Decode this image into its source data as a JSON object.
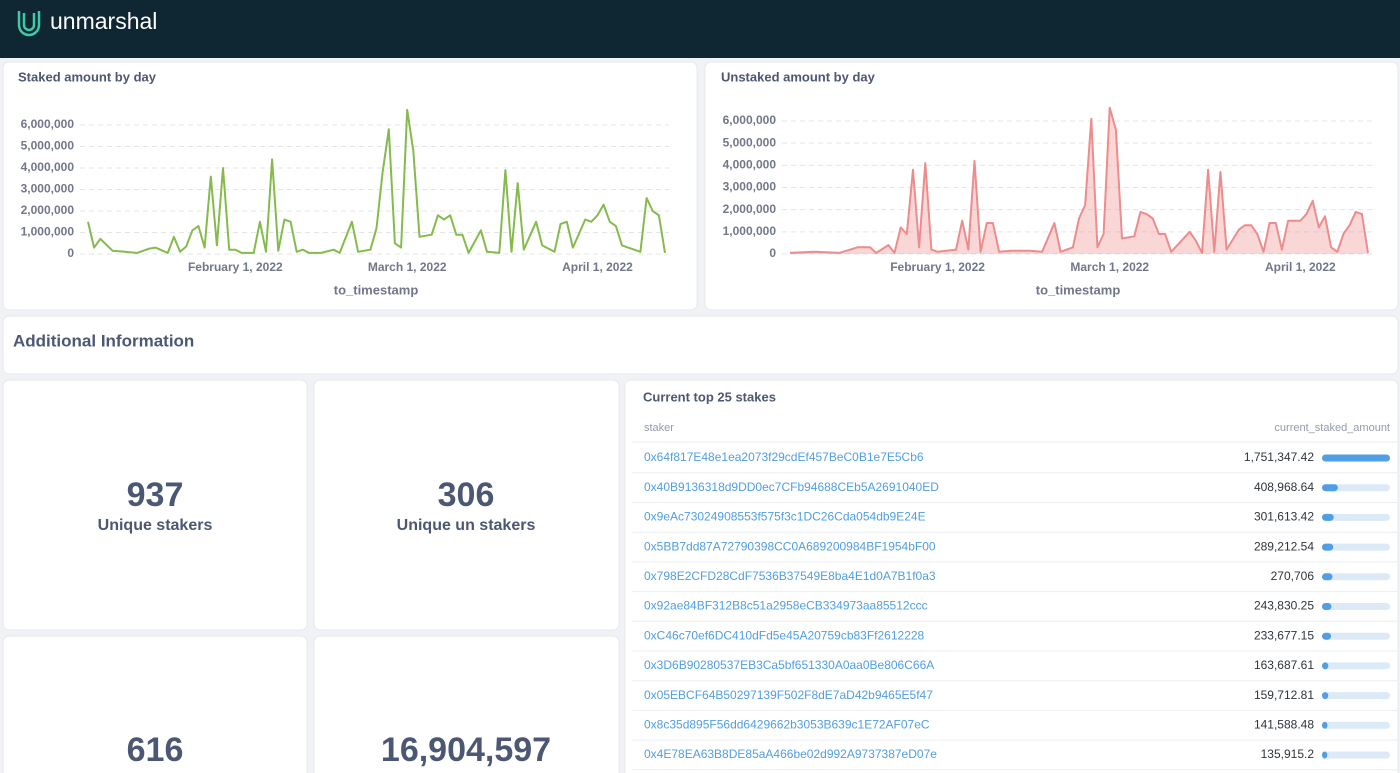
{
  "header": {
    "brand": "unmarshal"
  },
  "chart_data": [
    {
      "type": "line",
      "title": "Staked amount by day",
      "x_label": "to_timestamp",
      "color": "#84bb4c",
      "grid": true,
      "x": [
        "2022-01-08",
        "2022-01-09",
        "2022-01-10",
        "2022-01-12",
        "2022-01-14",
        "2022-01-16",
        "2022-01-18",
        "2022-01-19",
        "2022-01-21",
        "2022-01-22",
        "2022-01-23",
        "2022-01-24",
        "2022-01-25",
        "2022-01-26",
        "2022-01-27",
        "2022-01-28",
        "2022-01-29",
        "2022-01-30",
        "2022-01-31",
        "2022-02-01",
        "2022-02-02",
        "2022-02-04",
        "2022-02-05",
        "2022-02-06",
        "2022-02-07",
        "2022-02-08",
        "2022-02-09",
        "2022-02-10",
        "2022-02-11",
        "2022-02-12",
        "2022-02-13",
        "2022-02-15",
        "2022-02-17",
        "2022-02-18",
        "2022-02-20",
        "2022-02-21",
        "2022-02-23",
        "2022-02-24",
        "2022-02-25",
        "2022-02-26",
        "2022-02-27",
        "2022-02-28",
        "2022-03-01",
        "2022-03-02",
        "2022-03-03",
        "2022-03-05",
        "2022-03-06",
        "2022-03-07",
        "2022-03-08",
        "2022-03-09",
        "2022-03-10",
        "2022-03-11",
        "2022-03-13",
        "2022-03-14",
        "2022-03-16",
        "2022-03-17",
        "2022-03-18",
        "2022-03-19",
        "2022-03-20",
        "2022-03-22",
        "2022-03-23",
        "2022-03-25",
        "2022-03-26",
        "2022-03-27",
        "2022-03-28",
        "2022-03-30",
        "2022-03-31",
        "2022-04-01",
        "2022-04-02",
        "2022-04-03",
        "2022-04-04",
        "2022-04-05",
        "2022-04-07",
        "2022-04-08",
        "2022-04-09",
        "2022-04-10",
        "2022-04-11",
        "2022-04-12"
      ],
      "values": [
        1500000,
        300000,
        700000,
        150000,
        100000,
        50000,
        250000,
        300000,
        50000,
        800000,
        100000,
        350000,
        1100000,
        1300000,
        300000,
        3600000,
        400000,
        4000000,
        200000,
        200000,
        50000,
        50000,
        1500000,
        100000,
        4400000,
        150000,
        1600000,
        1500000,
        100000,
        200000,
        50000,
        50000,
        200000,
        50000,
        1500000,
        100000,
        200000,
        1200000,
        3800000,
        5800000,
        500000,
        300000,
        6700000,
        4800000,
        800000,
        900000,
        1800000,
        1600000,
        1800000,
        900000,
        900000,
        50000,
        1100000,
        100000,
        50000,
        3900000,
        100000,
        3300000,
        200000,
        1500000,
        400000,
        100000,
        1400000,
        1500000,
        300000,
        1600000,
        1500000,
        1800000,
        2300000,
        1500000,
        1300000,
        400000,
        200000,
        100000,
        2600000,
        2000000,
        1800000,
        50000
      ],
      "xlim": [
        "2022-01-08",
        "2022-04-12"
      ],
      "xticks": [
        {
          "value": "2022-02-01",
          "label": "February 1, 2022"
        },
        {
          "value": "2022-03-01",
          "label": "March 1, 2022"
        },
        {
          "value": "2022-04-01",
          "label": "April 1, 2022"
        }
      ],
      "ylim": [
        0,
        7000000
      ],
      "yticks": [
        0,
        {
          "value": 1000000,
          "label": "1,000,000"
        },
        {
          "value": 2000000,
          "label": "2,000,000"
        },
        {
          "value": 3000000,
          "label": "3,000,000"
        },
        {
          "value": 4000000,
          "label": "4,000,000"
        },
        {
          "value": 5000000,
          "label": "5,000,000"
        },
        {
          "value": 6000000,
          "label": "6,000,000"
        }
      ]
    },
    {
      "type": "area",
      "title": "Unstaked amount by day",
      "x_label": "to_timestamp",
      "color": "#ed8c8c",
      "grid": true,
      "x": [
        "2022-01-08",
        "2022-01-12",
        "2022-01-16",
        "2022-01-19",
        "2022-01-21",
        "2022-01-22",
        "2022-01-24",
        "2022-01-25",
        "2022-01-26",
        "2022-01-27",
        "2022-01-28",
        "2022-01-29",
        "2022-01-30",
        "2022-01-31",
        "2022-02-01",
        "2022-02-04",
        "2022-02-05",
        "2022-02-06",
        "2022-02-07",
        "2022-02-08",
        "2022-02-09",
        "2022-02-10",
        "2022-02-11",
        "2022-02-13",
        "2022-02-16",
        "2022-02-18",
        "2022-02-20",
        "2022-02-21",
        "2022-02-23",
        "2022-02-24",
        "2022-02-25",
        "2022-02-26",
        "2022-02-27",
        "2022-02-28",
        "2022-03-01",
        "2022-03-02",
        "2022-03-03",
        "2022-03-05",
        "2022-03-06",
        "2022-03-07",
        "2022-03-08",
        "2022-03-09",
        "2022-03-10",
        "2022-03-11",
        "2022-03-14",
        "2022-03-15",
        "2022-03-16",
        "2022-03-17",
        "2022-03-18",
        "2022-03-19",
        "2022-03-20",
        "2022-03-22",
        "2022-03-23",
        "2022-03-24",
        "2022-03-25",
        "2022-03-26",
        "2022-03-27",
        "2022-03-28",
        "2022-03-29",
        "2022-03-30",
        "2022-03-31",
        "2022-04-01",
        "2022-04-02",
        "2022-04-03",
        "2022-04-04",
        "2022-04-05",
        "2022-04-06",
        "2022-04-07",
        "2022-04-08",
        "2022-04-09",
        "2022-04-10",
        "2022-04-11",
        "2022-04-12"
      ],
      "values": [
        50000,
        100000,
        50000,
        300000,
        300000,
        50000,
        400000,
        50000,
        1200000,
        900000,
        3800000,
        300000,
        4100000,
        200000,
        100000,
        200000,
        1500000,
        200000,
        4200000,
        100000,
        1400000,
        1400000,
        100000,
        150000,
        150000,
        100000,
        1400000,
        100000,
        300000,
        1600000,
        2200000,
        6100000,
        300000,
        900000,
        6600000,
        5600000,
        700000,
        800000,
        1900000,
        1800000,
        1600000,
        900000,
        900000,
        100000,
        1000000,
        600000,
        50000,
        3800000,
        100000,
        3700000,
        200000,
        1100000,
        1300000,
        1300000,
        900000,
        100000,
        1400000,
        1400000,
        200000,
        1500000,
        1500000,
        1500000,
        1800000,
        2400000,
        1200000,
        1700000,
        300000,
        100000,
        900000,
        1300000,
        1900000,
        1800000,
        50000
      ],
      "xlim": [
        "2022-01-08",
        "2022-04-12"
      ],
      "xticks": [
        {
          "value": "2022-02-01",
          "label": "February 1, 2022"
        },
        {
          "value": "2022-03-01",
          "label": "March 1, 2022"
        },
        {
          "value": "2022-04-01",
          "label": "April 1, 2022"
        }
      ],
      "ylim": [
        0,
        7000000
      ],
      "yticks": [
        0,
        {
          "value": 1000000,
          "label": "1,000,000"
        },
        {
          "value": 2000000,
          "label": "2,000,000"
        },
        {
          "value": 3000000,
          "label": "3,000,000"
        },
        {
          "value": 4000000,
          "label": "4,000,000"
        },
        {
          "value": 5000000,
          "label": "5,000,000"
        },
        {
          "value": 6000000,
          "label": "6,000,000"
        }
      ]
    }
  ],
  "section": {
    "title": "Additional Information"
  },
  "stats": [
    {
      "value": "937",
      "label": "Unique stakers"
    },
    {
      "value": "306",
      "label": "Unique un stakers"
    },
    {
      "value": "616"
    },
    {
      "value": "16,904,597"
    }
  ],
  "table": {
    "title": "Current top 25 stakes",
    "columns": [
      "staker",
      "current_staked_amount"
    ],
    "stakers": [
      "0x64f817E48e1ea2073f29cdEf457BeC0B1e7E5Cb6",
      "0x40B9136318d9DD0ec7CFb94688CEb5A2691040ED",
      "0x9eAc73024908553f575f3c1DC26Cda054db9E24E",
      "0x5BB7dd87A72790398CC0A689200984BF1954bF00",
      "0x798E2CFD28CdF7536B37549E8ba4E1d0A7B1f0a3",
      "0x92ae84BF312B8c51a2958eCB334973aa85512ccc",
      "0xC46c70ef6DC410dFd5e45A20759cb83Ff2612228",
      "0x3D6B90280537EB3Ca5bf651330A0aa0Be806C66A",
      "0x05EBCF64B50297139F502F8dE7aD42b9465E5f47",
      "0x8c35d895F56dd6429662b3053B639c1E72AF07eC",
      "0x4E78EA63B8DE85aA466be02d992A9737387eD07e"
    ],
    "values": [
      1751347.42,
      408968.64,
      301613.42,
      289212.54,
      270706,
      243830.25,
      233677.15,
      163687.61,
      159712.81,
      141588.48,
      135915.2
    ],
    "value_labels": [
      "1,751,347.42",
      "408,968.64",
      "301,613.42",
      "289,212.54",
      "270,706",
      "243,830.25",
      "233,677.15",
      "163,687.61",
      "159,712.81",
      "141,588.48",
      "135,915.2"
    ]
  }
}
